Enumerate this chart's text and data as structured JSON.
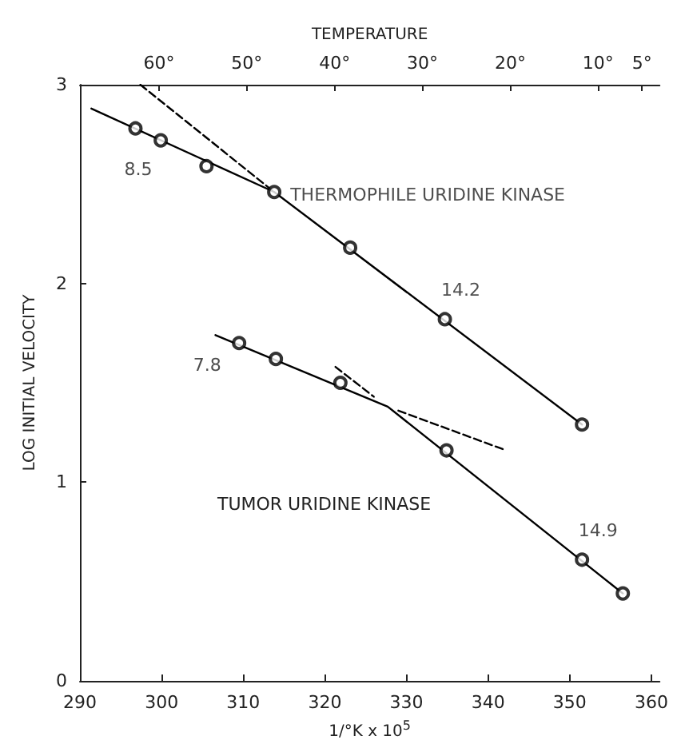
{
  "chart_data": {
    "type": "line",
    "xlabel": "1/°K x 10$^{5}$",
    "ylabel": "LOG INITIAL VELOCITY",
    "x2label": "TEMPERATURE",
    "xlim": [
      290,
      361
    ],
    "xticks": [
      290,
      300,
      310,
      320,
      330,
      340,
      350,
      360
    ],
    "x2lim": [
      69,
      3
    ],
    "x2ticks": [
      {
        "value": 60,
        "label": "60°"
      },
      {
        "value": 50,
        "label": "50°"
      },
      {
        "value": 40,
        "label": "40°"
      },
      {
        "value": 30,
        "label": "30°"
      },
      {
        "value": 20,
        "label": "20°"
      },
      {
        "value": 10,
        "label": "10°"
      },
      {
        "value": 5,
        "label": "5°"
      }
    ],
    "ylim": [
      0,
      3
    ],
    "yticks": [
      0,
      1,
      2,
      3
    ],
    "grid": false,
    "series": [
      {
        "type": "scatter",
        "marker": "circle",
        "color": "#000000",
        "x": [
          296.8,
          299.9,
          305.5,
          313.8,
          323.1,
          334.7,
          351.5
        ],
        "values": [
          2.78,
          2.72,
          2.59,
          2.46,
          2.18,
          1.82,
          1.29
        ]
      },
      {
        "marker": "none",
        "line_style": "solid",
        "color": "#000000",
        "x": [
          291.4,
          313.8,
          351.5
        ],
        "values": [
          2.88,
          2.46,
          1.29
        ]
      },
      {
        "marker": "none",
        "line_style": "dashed",
        "color": "#000000",
        "x": [
          297.4,
          313.8
        ],
        "values": [
          3.0,
          2.46
        ]
      },
      {
        "type": "scatter",
        "marker": "circle",
        "color": "#000000",
        "x": [
          309.5,
          314.0,
          321.9,
          334.9,
          351.5,
          356.5
        ],
        "values": [
          1.7,
          1.62,
          1.5,
          1.16,
          0.61,
          0.44
        ]
      },
      {
        "marker": "none",
        "line_style": "solid",
        "color": "#000000",
        "x": [
          306.6,
          327.7,
          356.5
        ],
        "values": [
          1.74,
          1.38,
          0.44
        ]
      },
      {
        "marker": "none",
        "line_style": "dashed",
        "color": "#000000",
        "x": [
          329.0,
          342.2
        ],
        "values": [
          1.36,
          1.16
        ]
      },
      {
        "marker": "none",
        "line_style": "dashed",
        "color": "#000000",
        "x": [
          321.3,
          326.0
        ],
        "values": [
          1.58,
          1.43
        ]
      }
    ],
    "annotations": [
      {
        "text": "8.5",
        "x": 299.9,
        "y": 2.72
      },
      {
        "text": "14.2",
        "x": 334.7,
        "y": 1.82
      },
      {
        "text": "7.8",
        "x": 309.5,
        "y": 1.7
      },
      {
        "text": "14.9",
        "x": 351.5,
        "y": 0.61
      },
      {
        "text": "THERMOPHILE URIDINE KINASE",
        "x": 313.8,
        "y": 2.46
      },
      "TUMOR URIDINE KINASE"
    ]
  }
}
